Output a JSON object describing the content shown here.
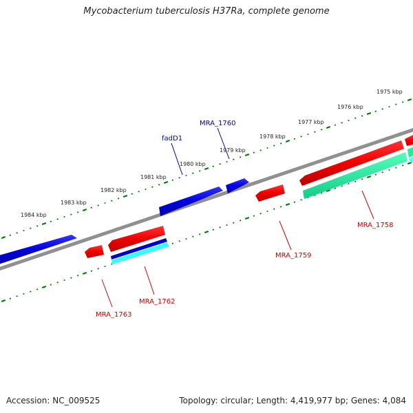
{
  "title": "Mycobacterium tuberculosis H37Ra, complete genome",
  "accession_label": "Accession: NC_009525",
  "summary_label": "Topology: circular; Length: 4,419,977 bp; Genes: 4,084",
  "scale_labels": [
    "1975 kbp",
    "1976 kbp",
    "1977 kbp",
    "1978 kbp",
    "1979 kbp",
    "1980 kbp",
    "1981 kbp",
    "1982 kbp",
    "1983 kbp",
    "1984 kbp"
  ],
  "gene_labels": {
    "fadD1": "fadD1",
    "MRA_1760": "MRA_1760",
    "MRA_1758": "MRA_1758",
    "MRA_1759": "MRA_1759",
    "MRA_1762": "MRA_1762",
    "MRA_1763": "MRA_1763"
  },
  "colors": {
    "forward_gene": "#0000dd",
    "reverse_gene": "#ee0000",
    "cds_teal": "#22ee99",
    "cds_cyan": "#33ffff",
    "backbone": "#888888",
    "ticks": "#007700",
    "label_blue": "#0000aa",
    "label_red": "#cc0000"
  }
}
